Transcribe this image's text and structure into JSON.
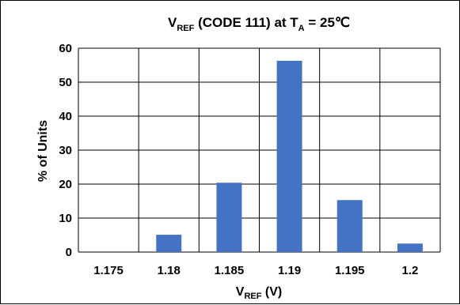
{
  "chart_data": {
    "type": "bar",
    "title": {
      "main": "V",
      "main_sub": "REF",
      "middle": " (CODE 111) at T",
      "middle_sub": "A",
      "end": " = 25℃"
    },
    "xlabel": {
      "main": "V",
      "sub": "REF",
      "end": " (V)"
    },
    "ylabel": "% of Units",
    "categories": [
      "1.175",
      "1.18",
      "1.185",
      "1.19",
      "1.195",
      "1.2"
    ],
    "values": [
      0,
      5.1,
      20.4,
      56.3,
      15.3,
      2.5
    ],
    "ylim": [
      0,
      60
    ],
    "yticks": [
      "0",
      "10",
      "20",
      "30",
      "40",
      "50",
      "60"
    ],
    "grid": true,
    "bar_color": "#4472C4"
  }
}
